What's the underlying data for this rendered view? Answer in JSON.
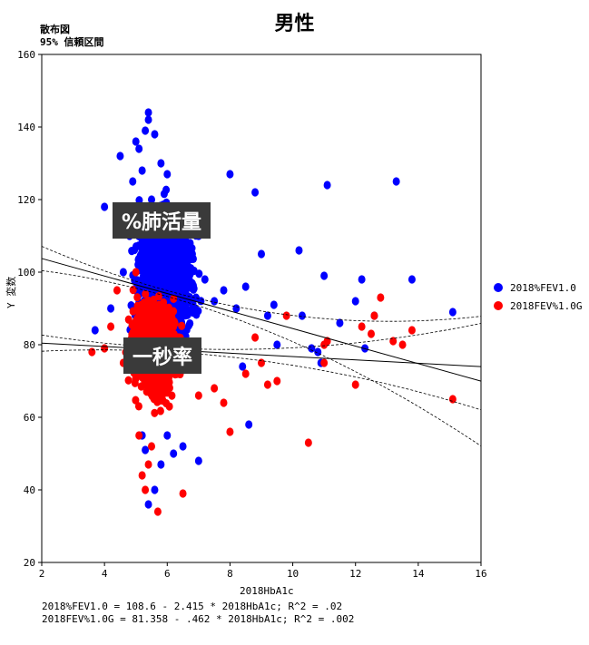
{
  "chart_data": {
    "type": "scatter",
    "title": "男性",
    "subtitle_lines": [
      "散布図",
      "95% 信頼区間"
    ],
    "xlabel": "2018HbA1c",
    "ylabel": "Y 変数",
    "xlim": [
      2,
      16
    ],
    "ylim": [
      20,
      160
    ],
    "x_ticks": [
      "2",
      "4",
      "6",
      "8",
      "10",
      "12",
      "14",
      "16"
    ],
    "y_ticks": [
      "20",
      "40",
      "60",
      "80",
      "100",
      "120",
      "140",
      "160"
    ],
    "legend_position": "right",
    "series": [
      {
        "name": "2018%FEV1.0",
        "color": "#0000ff",
        "regression": {
          "intercept": 108.6,
          "slope": -2.415
        },
        "equation": "2018%FEV1.0 = 108.6 - 2.415 * 2018HbA1c; R^2 = .02",
        "points": [
          [
            3.7,
            84
          ],
          [
            4.0,
            118
          ],
          [
            4.2,
            90
          ],
          [
            4.5,
            132
          ],
          [
            4.6,
            100
          ],
          [
            4.8,
            110
          ],
          [
            4.9,
            125
          ],
          [
            5.0,
            136
          ],
          [
            5.1,
            134
          ],
          [
            5.2,
            128
          ],
          [
            5.3,
            139
          ],
          [
            5.4,
            144
          ],
          [
            5.4,
            142
          ],
          [
            5.5,
            120
          ],
          [
            5.6,
            138
          ],
          [
            5.7,
            115
          ],
          [
            5.8,
            130
          ],
          [
            6.0,
            127
          ],
          [
            6.1,
            118
          ],
          [
            6.3,
            112
          ],
          [
            6.5,
            108
          ],
          [
            6.8,
            105
          ],
          [
            7.0,
            110
          ],
          [
            7.2,
            98
          ],
          [
            7.5,
            92
          ],
          [
            7.8,
            95
          ],
          [
            8.0,
            127
          ],
          [
            8.2,
            90
          ],
          [
            8.5,
            96
          ],
          [
            8.8,
            122
          ],
          [
            9.0,
            105
          ],
          [
            9.2,
            88
          ],
          [
            9.4,
            91
          ],
          [
            10.2,
            106
          ],
          [
            10.3,
            88
          ],
          [
            10.6,
            79
          ],
          [
            10.8,
            78
          ],
          [
            11.0,
            99
          ],
          [
            11.1,
            124
          ],
          [
            11.5,
            86
          ],
          [
            12.0,
            92
          ],
          [
            12.2,
            98
          ],
          [
            12.3,
            79
          ],
          [
            12.6,
            88
          ],
          [
            13.3,
            125
          ],
          [
            13.8,
            98
          ],
          [
            15.1,
            89
          ],
          [
            5.2,
            55
          ],
          [
            5.3,
            51
          ],
          [
            5.4,
            36
          ],
          [
            5.6,
            40
          ],
          [
            5.8,
            47
          ],
          [
            6.0,
            55
          ],
          [
            6.2,
            50
          ],
          [
            6.5,
            52
          ],
          [
            7.0,
            48
          ],
          [
            8.6,
            58
          ],
          [
            8.4,
            74
          ],
          [
            9.5,
            80
          ],
          [
            10.9,
            75
          ]
        ]
      },
      {
        "name": "2018FEV%1.0G",
        "color": "#ff0000",
        "regression": {
          "intercept": 81.358,
          "slope": -0.462
        },
        "equation": "2018FEV%1.0G = 81.358 - .462 * 2018HbA1c; R^2 = .002",
        "points": [
          [
            3.6,
            78
          ],
          [
            4.0,
            79
          ],
          [
            4.2,
            85
          ],
          [
            4.4,
            95
          ],
          [
            4.6,
            75
          ],
          [
            5.0,
            100
          ],
          [
            5.1,
            55
          ],
          [
            5.2,
            44
          ],
          [
            5.3,
            40
          ],
          [
            5.4,
            47
          ],
          [
            5.5,
            52
          ],
          [
            5.7,
            34
          ],
          [
            6.2,
            85
          ],
          [
            6.5,
            39
          ],
          [
            7.0,
            66
          ],
          [
            7.5,
            68
          ],
          [
            7.8,
            64
          ],
          [
            8.0,
            56
          ],
          [
            8.5,
            72
          ],
          [
            8.8,
            82
          ],
          [
            9.0,
            75
          ],
          [
            9.2,
            69
          ],
          [
            9.5,
            70
          ],
          [
            9.8,
            88
          ],
          [
            10.5,
            53
          ],
          [
            11.0,
            80
          ],
          [
            11.1,
            81
          ],
          [
            11.0,
            75
          ],
          [
            12.0,
            69
          ],
          [
            12.2,
            85
          ],
          [
            12.5,
            83
          ],
          [
            12.6,
            88
          ],
          [
            12.8,
            93
          ],
          [
            13.2,
            81
          ],
          [
            13.5,
            80
          ],
          [
            13.8,
            84
          ],
          [
            15.1,
            65
          ]
        ]
      }
    ]
  },
  "annotations": {
    "vital_capacity": "%肺活量",
    "fev1_ratio": "一秒率"
  }
}
